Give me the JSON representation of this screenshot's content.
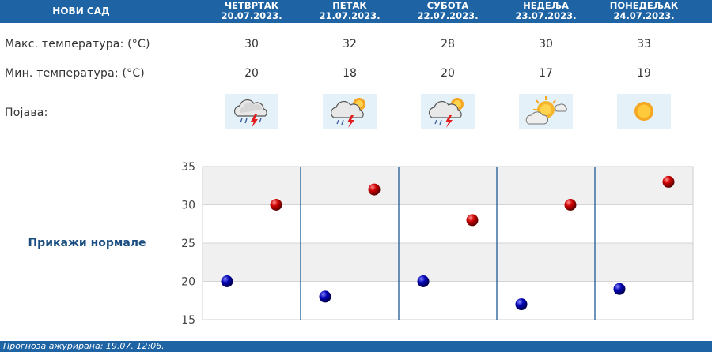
{
  "header": {
    "city": "НОВИ САД",
    "days": [
      {
        "name": "ЧЕТВРТАК",
        "date": "20.07.2023."
      },
      {
        "name": "ПЕТАК",
        "date": "21.07.2023."
      },
      {
        "name": "СУБОТА",
        "date": "22.07.2023."
      },
      {
        "name": "НЕДЕЉА",
        "date": "23.07.2023."
      },
      {
        "name": "ПОНЕДЕЉАК",
        "date": "24.07.2023."
      }
    ]
  },
  "rows": {
    "max_label": "Макс. температура: (°C)",
    "min_label": "Мин. температура: (°C)",
    "phenomenon_label": "Појава:"
  },
  "forecast": {
    "max": [
      "30",
      "32",
      "28",
      "30",
      "33"
    ],
    "min": [
      "20",
      "18",
      "20",
      "17",
      "19"
    ],
    "icons": [
      "thunderstorm-rain-icon",
      "partly-sunny-thunderstorm-icon",
      "partly-sunny-thunderstorm-icon",
      "sun-behind-cloud-icon",
      "sun-icon"
    ]
  },
  "normals_label": "Прикажи нормале",
  "chart_data": {
    "type": "scatter",
    "categories": [
      "ЧЕТВРТАК",
      "ПЕТАК",
      "СУБОТА",
      "НЕДЕЉА",
      "ПОНЕДЕЉАК"
    ],
    "series": [
      {
        "values": [
          30,
          32,
          28,
          30,
          33
        ],
        "color": "#cc0000"
      },
      {
        "values": [
          20,
          18,
          20,
          17,
          19
        ],
        "color": "#0000b3"
      }
    ],
    "ylim": [
      15,
      35
    ],
    "yticks": [
      "15",
      "20",
      "25",
      "30",
      "35"
    ],
    "grid": true
  },
  "footer": {
    "updated": "Прогноза ажурирана:  19.07.  12:06."
  },
  "colors": {
    "header_bg": "#1e63a4",
    "max_dot": "#cc0000",
    "min_dot": "#0000b3",
    "band": "#f0f0f0"
  }
}
